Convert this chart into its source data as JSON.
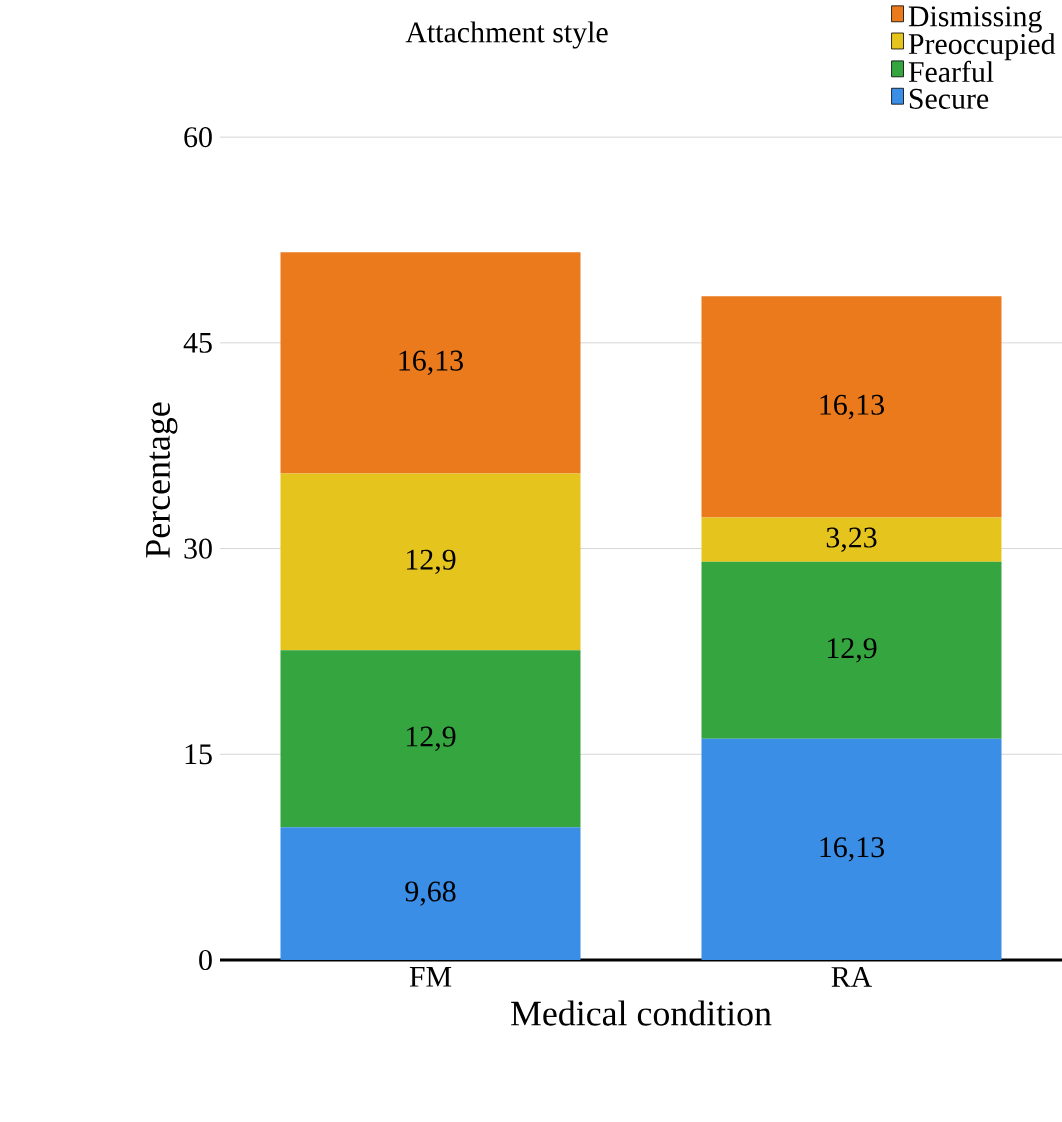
{
  "chart_data": {
    "type": "bar",
    "stacked": true,
    "xlabel": "Medical condition",
    "ylabel": "Percentage",
    "legend_title": "Attachment style",
    "categories": [
      "FM",
      "RA"
    ],
    "series": [
      {
        "name": "Secure",
        "color": "#3a8ee6",
        "values": [
          9.68,
          16.13
        ],
        "value_labels": [
          "9,68",
          "16,13"
        ]
      },
      {
        "name": "Fearful",
        "color": "#35a540",
        "values": [
          12.9,
          12.9
        ],
        "value_labels": [
          "12,9",
          "12,9"
        ]
      },
      {
        "name": "Preoccupied",
        "color": "#e6c41e",
        "values": [
          12.9,
          3.23
        ],
        "value_labels": [
          "12,9",
          "3,23"
        ]
      },
      {
        "name": "Dismissing",
        "color": "#ea7a1c",
        "values": [
          16.13,
          16.13
        ],
        "value_labels": [
          "16,13",
          "16,13"
        ]
      }
    ],
    "ylim": [
      0,
      70
    ],
    "yticks": [
      0,
      15,
      30,
      45,
      60
    ],
    "grid": "y",
    "legend": "top right"
  }
}
